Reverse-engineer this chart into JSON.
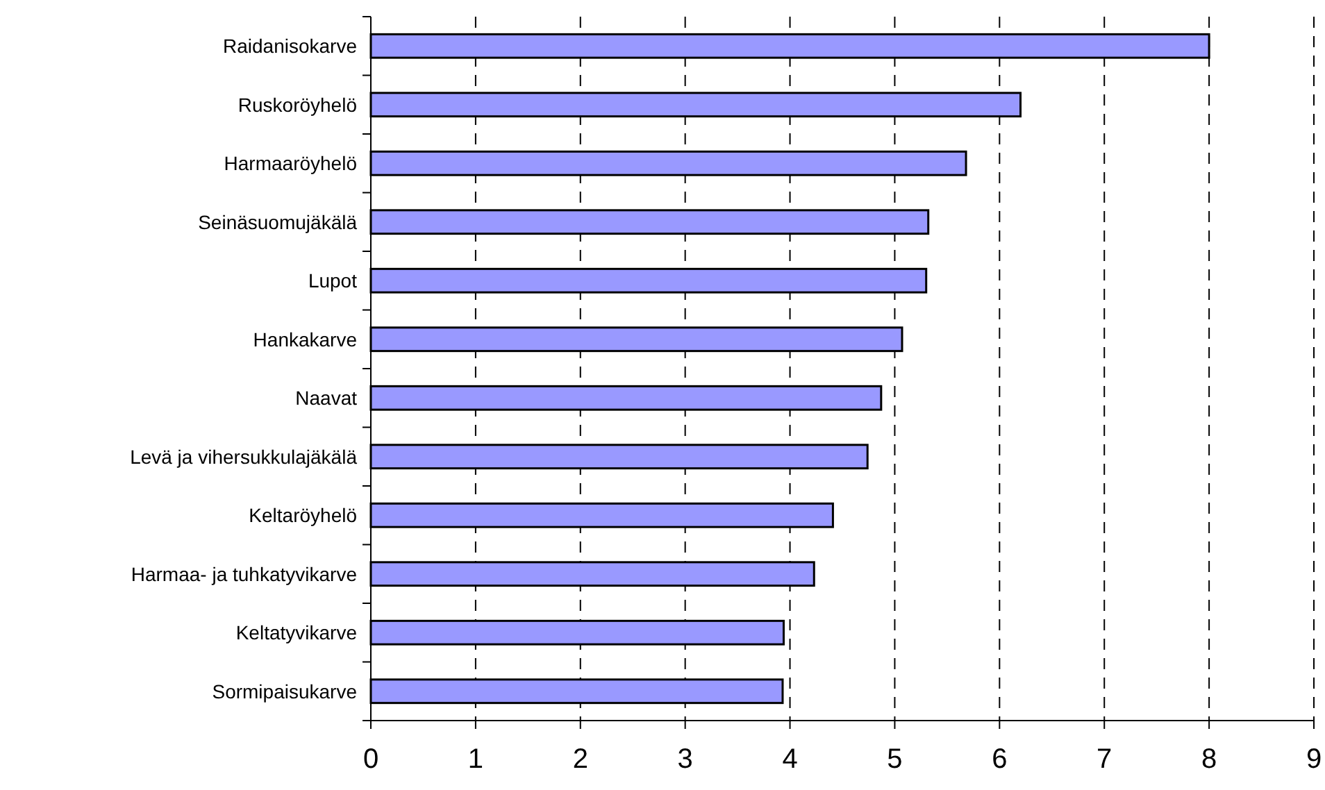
{
  "chart_data": {
    "type": "bar",
    "orientation": "horizontal",
    "categories": [
      "Raidanisokarve",
      "Ruskoröyhelö",
      "Harmaaröyhelö",
      "Seinäsuomujäkälä",
      "Lupot",
      "Hankakarve",
      "Naavat",
      "Levä ja vihersukkulajäkälä",
      "Keltaröyhelö",
      "Harmaa- ja tuhkatyvikarve",
      "Keltatyvikarve",
      "Sormipaisukarve"
    ],
    "values": [
      8.0,
      6.2,
      5.68,
      5.32,
      5.3,
      5.07,
      4.87,
      4.74,
      4.41,
      4.23,
      3.94,
      3.93
    ],
    "color": "#9999ff",
    "xlim": [
      0,
      9
    ],
    "xticks": [
      0,
      1,
      2,
      3,
      4,
      5,
      6,
      7,
      8,
      9
    ],
    "grid": "x"
  }
}
